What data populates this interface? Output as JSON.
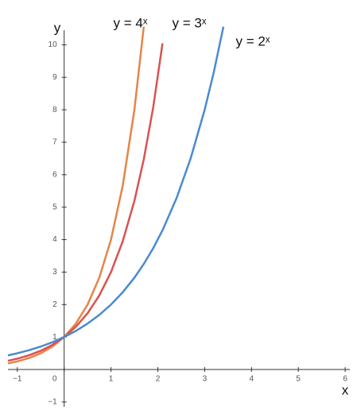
{
  "chart_data": {
    "type": "line",
    "x_label": "x",
    "y_label": "y",
    "x": [
      -1.2,
      -1,
      -0.75,
      -0.5,
      -0.25,
      0,
      0.25,
      0.5,
      0.75,
      1,
      1.25,
      1.5,
      1.7,
      1.9,
      2.1,
      2.4,
      2.7,
      3,
      3.2,
      3.4
    ],
    "series": [
      {
        "name": "y = 4ˣ",
        "color": "#e8834a",
        "values": [
          0.189,
          0.25,
          0.354,
          0.5,
          0.707,
          1,
          1.414,
          2,
          2.828,
          4,
          5.657,
          8,
          10.556,
          null,
          null,
          null,
          null,
          null,
          null,
          null
        ]
      },
      {
        "name": "y = 3ˣ",
        "color": "#d9534f",
        "values": [
          0.268,
          0.333,
          0.439,
          0.577,
          0.76,
          1,
          1.316,
          1.732,
          2.28,
          3,
          3.948,
          5.196,
          6.473,
          8.063,
          10.045,
          null,
          null,
          null,
          null,
          null
        ]
      },
      {
        "name": "y = 2ˣ",
        "color": "#4a8ad0",
        "values": [
          0.435,
          0.5,
          0.595,
          0.707,
          0.841,
          1,
          1.189,
          1.414,
          1.682,
          2,
          2.378,
          2.828,
          3.249,
          3.732,
          4.287,
          5.278,
          6.498,
          8,
          9.19,
          10.556
        ]
      }
    ],
    "xlim": [
      -1.2,
      6.1
    ],
    "ylim": [
      -1.15,
      10.45
    ],
    "xticks": [
      {
        "value": -1,
        "label": "−1"
      },
      0,
      1,
      2,
      3,
      4,
      5,
      6
    ],
    "yticks": [
      {
        "value": -1,
        "label": "−1"
      },
      1,
      2,
      3,
      4,
      5,
      6,
      7,
      8,
      9,
      10
    ],
    "grid": false
  }
}
